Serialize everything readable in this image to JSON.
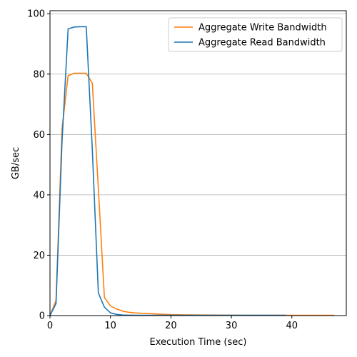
{
  "chart_data": {
    "type": "line",
    "title": "",
    "xlabel": "Execution Time (sec)",
    "ylabel": "GB/sec",
    "xlim": [
      0,
      49
    ],
    "ylim": [
      0,
      101
    ],
    "xticks": [
      0,
      10,
      20,
      30,
      40
    ],
    "yticks": [
      0,
      20,
      40,
      60,
      80,
      100
    ],
    "grid": "horizontal",
    "legend_position": "top-right",
    "series": [
      {
        "name": "Aggregate Write Bandwidth",
        "color": "#ff7f0e",
        "x": [
          0,
          1,
          2,
          3,
          4,
          5,
          6,
          7,
          8,
          9,
          10,
          11,
          12,
          13,
          14,
          15,
          16,
          17,
          18,
          20,
          25,
          30,
          35,
          40,
          45,
          47
        ],
        "y": [
          0,
          5,
          62,
          79.5,
          80.3,
          80.3,
          80.3,
          77,
          42,
          6,
          3.2,
          2.2,
          1.5,
          1.1,
          0.9,
          0.8,
          0.7,
          0.6,
          0.5,
          0.3,
          0.2,
          0.15,
          0.1,
          0.1,
          0.1,
          0.1
        ]
      },
      {
        "name": "Aggregate Read Bandwidth",
        "color": "#1f77b4",
        "x": [
          0,
          1,
          2,
          3,
          4,
          5,
          6,
          7,
          8,
          9,
          10,
          11,
          12,
          13,
          15,
          20,
          25,
          30,
          35,
          39
        ],
        "y": [
          0,
          4,
          58,
          95,
          95.6,
          95.7,
          95.7,
          55,
          7.5,
          2.8,
          0.9,
          0.4,
          0.2,
          0.15,
          0.1,
          0.1,
          0.1,
          0.1,
          0.1,
          0.1
        ]
      }
    ]
  }
}
